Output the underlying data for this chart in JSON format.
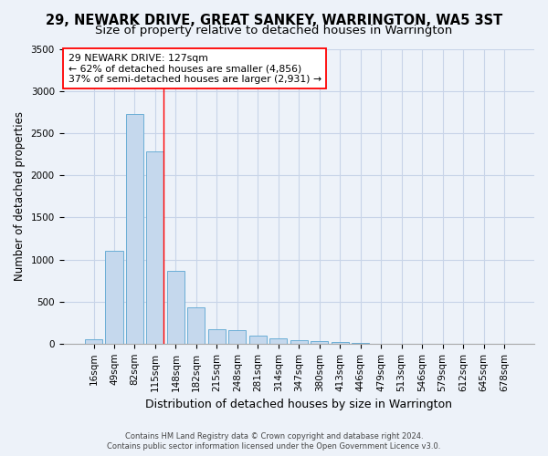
{
  "title": "29, NEWARK DRIVE, GREAT SANKEY, WARRINGTON, WA5 3ST",
  "subtitle": "Size of property relative to detached houses in Warrington",
  "xlabel": "Distribution of detached houses by size in Warrington",
  "ylabel": "Number of detached properties",
  "categories": [
    "16sqm",
    "49sqm",
    "82sqm",
    "115sqm",
    "148sqm",
    "182sqm",
    "215sqm",
    "248sqm",
    "281sqm",
    "314sqm",
    "347sqm",
    "380sqm",
    "413sqm",
    "446sqm",
    "479sqm",
    "513sqm",
    "546sqm",
    "579sqm",
    "612sqm",
    "645sqm",
    "678sqm"
  ],
  "values": [
    50,
    1100,
    2730,
    2290,
    870,
    430,
    170,
    165,
    95,
    60,
    45,
    30,
    20,
    8,
    3,
    0,
    0,
    0,
    0,
    0,
    0
  ],
  "bar_color": "#c5d8ed",
  "bar_edge_color": "#6baed6",
  "annotation_label": "29 NEWARK DRIVE: 127sqm",
  "annotation_line1": "← 62% of detached houses are smaller (4,856)",
  "annotation_line2": "37% of semi-detached houses are larger (2,931) →",
  "vline_color": "red",
  "ylim": [
    0,
    3500
  ],
  "yticks": [
    0,
    500,
    1000,
    1500,
    2000,
    2500,
    3000,
    3500
  ],
  "title_fontsize": 10.5,
  "subtitle_fontsize": 9.5,
  "xlabel_fontsize": 9,
  "ylabel_fontsize": 8.5,
  "tick_fontsize": 7.5,
  "footer_line1": "Contains HM Land Registry data © Crown copyright and database right 2024.",
  "footer_line2": "Contains public sector information licensed under the Open Government Licence v3.0.",
  "background_color": "#edf2f9",
  "plot_bg_color": "#edf2f9",
  "grid_color": "#c8d4e8"
}
